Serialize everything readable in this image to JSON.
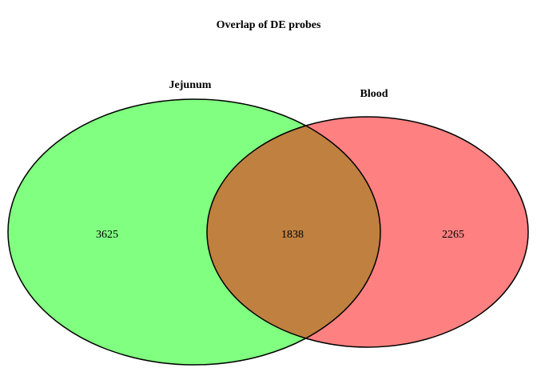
{
  "title": "Overlap of DE probes",
  "sets": [
    {
      "name": "Jejunum",
      "color": "#80ff80"
    },
    {
      "name": "Blood",
      "color": "#ff8080"
    }
  ],
  "intersection_color": "#bf8040",
  "regions": {
    "jejunum_only": "3625",
    "both": "1838",
    "blood_only": "2265"
  }
}
